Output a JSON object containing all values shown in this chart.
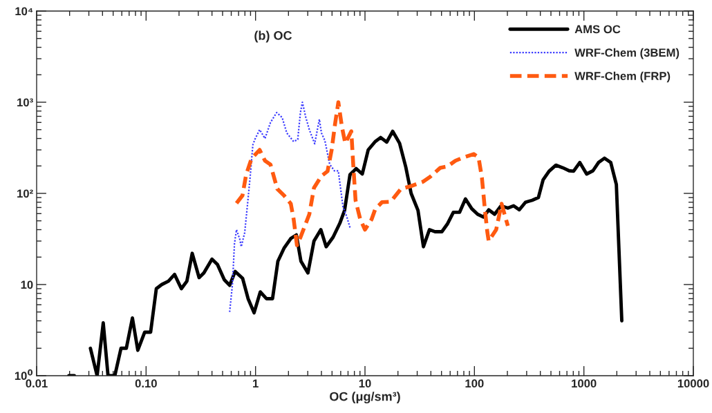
{
  "chart_data": {
    "type": "line",
    "title": "(b) OC",
    "xlabel": "OC (μg/sm³)",
    "log": "xy",
    "xlim": [
      0.01,
      10000
    ],
    "ylim": [
      1,
      10000
    ],
    "xticks": [
      {
        "value": 0.01,
        "label": "0.01"
      },
      {
        "value": 0.1,
        "label": "0.10"
      },
      1,
      10,
      100,
      1000,
      10000
    ],
    "yticks": [
      {
        "value": 1,
        "label": "10$^{0}$"
      },
      10,
      {
        "value": 100,
        "label": "10²"
      },
      {
        "value": 1000,
        "label": "10³"
      },
      {
        "value": 10000,
        "label": "10⁴"
      }
    ],
    "grid": false,
    "legend": "top right",
    "series": [
      {
        "name": "AMS OC",
        "color": "#000000",
        "line_style": "solid",
        "x": [
          0.0197,
          0.0221,
          0.026,
          0.031,
          0.0357,
          0.0406,
          0.0449,
          0.0518,
          0.059,
          0.066,
          0.075,
          0.084,
          0.097,
          0.11,
          0.124,
          0.139,
          0.16,
          0.182,
          0.21,
          0.236,
          0.264,
          0.305,
          0.337,
          0.4,
          0.449,
          0.518,
          0.58,
          0.651,
          0.762,
          0.855,
          0.97,
          1.105,
          1.257,
          1.43,
          1.6,
          1.82,
          2.1,
          2.36,
          2.6,
          3.01,
          3.42,
          3.95,
          4.42,
          5.11,
          5.89,
          6.51,
          7.29,
          8.3,
          9.45,
          10.7,
          12.4,
          13.9,
          15.8,
          17.9,
          20.7,
          23.6,
          26.4,
          30.5,
          34.2,
          38.8,
          43.6,
          50.4,
          56.5,
          64.2,
          73.1,
          82.8,
          94.4,
          107,
          121,
          135,
          153,
          175,
          202,
          228,
          257,
          293,
          337,
          384,
          424,
          481,
          555,
          642,
          734,
          805,
          917,
          1060,
          1210,
          1360,
          1540,
          1760,
          1980,
          2220
        ],
        "values": [
          1,
          1,
          null,
          2,
          1,
          3.8,
          1,
          1,
          2,
          2,
          4.3,
          1.9,
          3,
          3,
          9,
          10,
          10.9,
          12.9,
          9,
          10.9,
          22,
          11.9,
          13.4,
          19,
          16.6,
          11.3,
          9.8,
          13.9,
          11.7,
          7,
          4.9,
          8.3,
          7,
          7,
          18,
          25,
          32,
          35,
          18,
          13.4,
          30,
          40,
          26,
          33,
          47,
          65,
          160,
          187,
          163,
          300,
          370,
          410,
          365,
          480,
          355,
          194,
          100,
          65,
          26,
          40,
          38,
          38,
          46,
          62,
          62,
          87,
          68,
          59,
          55,
          66,
          59,
          73,
          69,
          73,
          66,
          80,
          84,
          90,
          141,
          175,
          204,
          191,
          177,
          175,
          218,
          163,
          177,
          218,
          243,
          218,
          125,
          4
        ]
      },
      {
        "name": "WRF-Chem (3BEM)",
        "color": "#3b3bff",
        "line_style": "dotted",
        "x": [
          0.58,
          0.615,
          0.642,
          0.67,
          0.72,
          0.74,
          0.796,
          0.855,
          0.892,
          0.945,
          0.986,
          1.09,
          1.22,
          1.37,
          1.56,
          1.75,
          1.93,
          2.23,
          2.43,
          2.57,
          2.68,
          2.88,
          3.1,
          3.47,
          3.83,
          4.0,
          4.3,
          4.75,
          5.25,
          5.7,
          6.3,
          6.8,
          7.3
        ],
        "values": [
          5,
          10,
          28,
          40,
          31,
          26,
          37,
          88,
          150,
          340,
          390,
          500,
          400,
          600,
          770,
          680,
          460,
          370,
          390,
          770,
          1000,
          680,
          500,
          350,
          650,
          460,
          380,
          210,
          177,
          177,
          71,
          56,
          42
        ]
      },
      {
        "name": "WRF-Chem (FRP)",
        "color": "#ff5a10",
        "line_style": "dashed",
        "x": [
          0.67,
          0.76,
          0.82,
          0.918,
          1.09,
          1.22,
          1.37,
          1.58,
          1.82,
          2.1,
          2.23,
          2.39,
          2.6,
          3.1,
          3.42,
          4.0,
          4.55,
          4.96,
          5.32,
          5.71,
          6.15,
          6.6,
          7.5,
          7.8,
          8.2,
          9.05,
          10,
          11.5,
          12.4,
          14.3,
          17.2,
          21.3,
          25.7,
          33.8,
          39.4,
          48.8,
          56.5,
          67,
          79.4,
          98.6,
          109,
          117,
          124,
          131,
          135,
          158,
          177,
          202
        ],
        "values": [
          78,
          95,
          160,
          240,
          300,
          228,
          207,
          112,
          95,
          77,
          52,
          27,
          34,
          59,
          115,
          155,
          175,
          300,
          570,
          1000,
          540,
          355,
          480,
          212,
          84,
          52,
          40,
          52,
          67,
          80,
          81,
          112,
          119,
          134,
          152,
          191,
          197,
          228,
          248,
          270,
          248,
          149,
          71,
          38,
          30,
          40,
          77,
          44
        ]
      }
    ]
  }
}
